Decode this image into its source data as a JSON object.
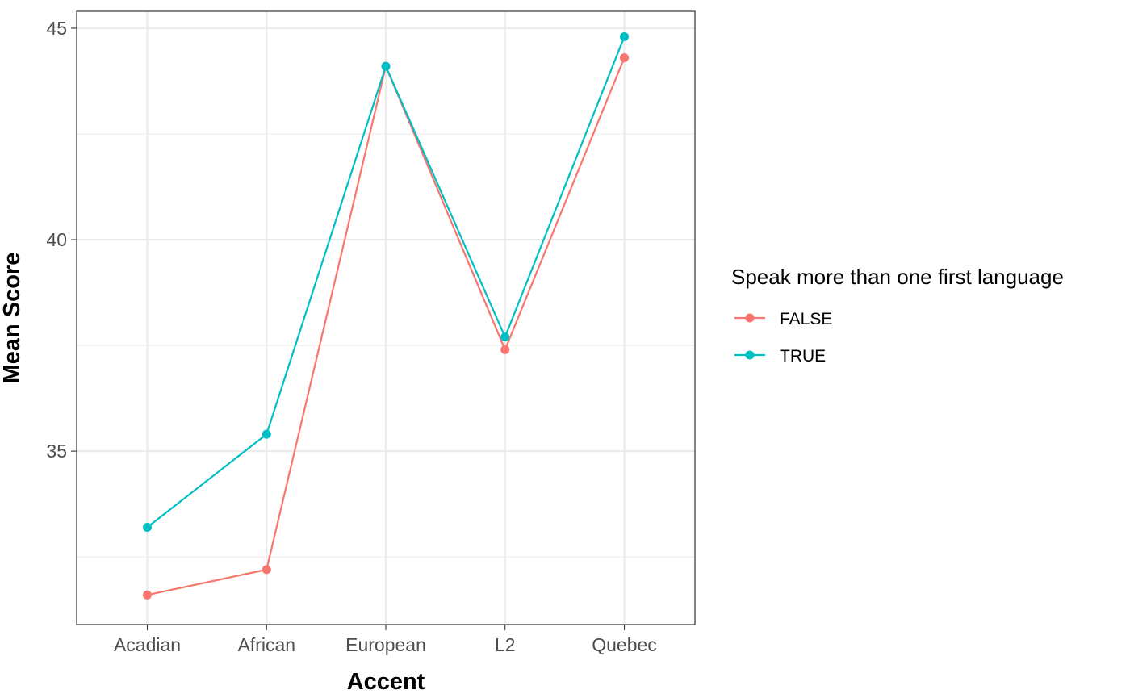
{
  "chart_data": {
    "type": "line",
    "title": "",
    "xlabel": "Accent",
    "ylabel": "Mean Score",
    "categories": [
      "Acadian",
      "African",
      "European",
      "L2",
      "Quebec"
    ],
    "ylim": [
      30.9,
      45.4
    ],
    "yticks": [
      35,
      40,
      45
    ],
    "grid": true,
    "legend": {
      "title": "Speak more than one first language",
      "position": "right"
    },
    "series": [
      {
        "name": "FALSE",
        "color": "#F8766D",
        "values": [
          31.6,
          32.2,
          44.1,
          37.4,
          44.3
        ]
      },
      {
        "name": "TRUE",
        "color": "#00BFC4",
        "values": [
          33.2,
          35.4,
          44.1,
          37.7,
          44.8
        ]
      }
    ]
  }
}
